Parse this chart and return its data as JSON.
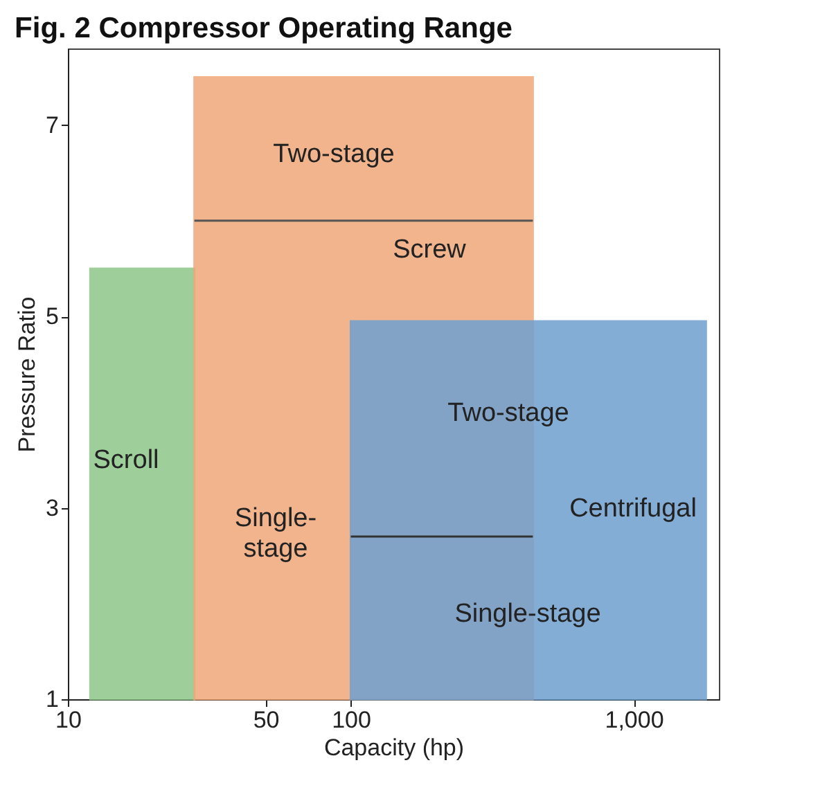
{
  "chart_data": {
    "type": "area",
    "title": "Fig. 2  Compressor Operating Range",
    "xlabel": "Capacity (hp)",
    "ylabel": "Pressure Ratio",
    "log": "x",
    "xlim": [
      10,
      2000
    ],
    "ylim": [
      1,
      7.8
    ],
    "xticks": [
      10,
      50,
      100,
      {
        "value": 1000,
        "label": "1,000"
      }
    ],
    "yticks": [
      1,
      3,
      5,
      7
    ],
    "series": [
      {
        "name": "Scroll",
        "color": "#8ec78a",
        "x": [
          12,
          28
        ],
        "values": [
          5.5,
          5.5
        ]
      },
      {
        "name": "Screw",
        "color": "#f0a77a",
        "x": [
          28,
          440
        ],
        "values": [
          7.5,
          7.5
        ]
      },
      {
        "name": "Centrifugal",
        "color": "#6f9fd0",
        "x": [
          100,
          1800
        ],
        "values": [
          4.95,
          4.95
        ]
      },
      {
        "type": "line",
        "color": "#555555",
        "x": [
          28,
          440
        ],
        "values": [
          6,
          6
        ]
      },
      {
        "type": "line",
        "color": "#333333",
        "x": [
          100,
          440
        ],
        "values": [
          2.7,
          2.7
        ]
      }
    ],
    "annotations": [
      "Two-stage",
      "Single-\nstage",
      "Two-stage",
      "Single-stage"
    ]
  }
}
